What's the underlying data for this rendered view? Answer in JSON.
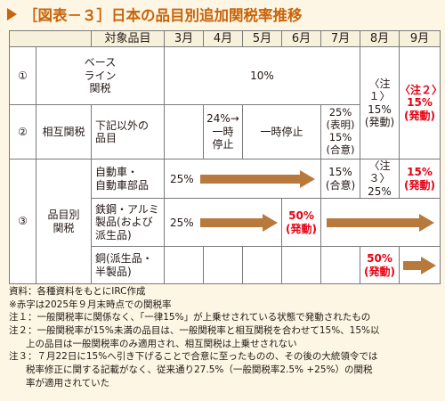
{
  "title": "［図表－３］日本の品目別追加関税率推移",
  "header": {
    "item": "対象品目",
    "months": [
      "3月",
      "4月",
      "5月",
      "6月",
      "7月",
      "8月",
      "9月"
    ]
  },
  "rows": {
    "r1": {
      "num": "①",
      "label": "ベース\nライン\n関税",
      "rate": "10%",
      "aug": "〈注１〉\n15%\n(発動)",
      "sep_label": "〈注２〉",
      "sep_rate": "15%",
      "sep_status": "(発動)"
    },
    "r2": {
      "num": "②",
      "label": "相互関税",
      "item": "下記以外の\n品目",
      "apr": "24%→\n一時\n停止",
      "may_jun": "一時停止",
      "jul": "25%\n(表明)\n15%\n(合意)"
    },
    "r3": {
      "num": "③",
      "label": "品目別\n関税",
      "auto": {
        "item": "自動車・\n自動車部品",
        "mar": "25%",
        "jul": "15%\n(合意)",
        "aug": "〈注３〉\n25%",
        "sep_rate": "15%",
        "sep_status": "(発動)"
      },
      "steel": {
        "item": "鉄鋼・アルミ\n製品(および\n派生品)",
        "mar": "25%",
        "jun_rate": "50%",
        "jun_status": "(発動)"
      },
      "copper": {
        "item": "銅(派生品・\n半製品)",
        "aug_rate": "50%",
        "aug_status": "(発動)"
      }
    }
  },
  "notes": {
    "source": "資料：各種資料をもとにIRC作成",
    "red_note": "※赤字は2025年９月末時点での関税率",
    "note1": "注１：一般関税率に関係なく、「一律15%」が上乗せされている状態で発動されたもの",
    "note2_a": "注２：一般関税率が15%未満の品目は、一般関税率と相互関税を合わせて15%、15%以",
    "note2_b": "上の品目は一般関税率のみ適用され、相互関税は上乗せされない",
    "note3_a": "注３：７月22日に15%へ引き下げることで合意に至ったものの、その後の大統領令では",
    "note3_b": "税率修正に関する記載がなく、従来通り27.5%（一般関税率2.5% +25%）の関税",
    "note3_c": "率が適用されていた"
  },
  "colors": {
    "title": "#c8640a",
    "arrow": "#b87a3c",
    "highlight": "#e60012",
    "background": "#fdf6e4"
  }
}
